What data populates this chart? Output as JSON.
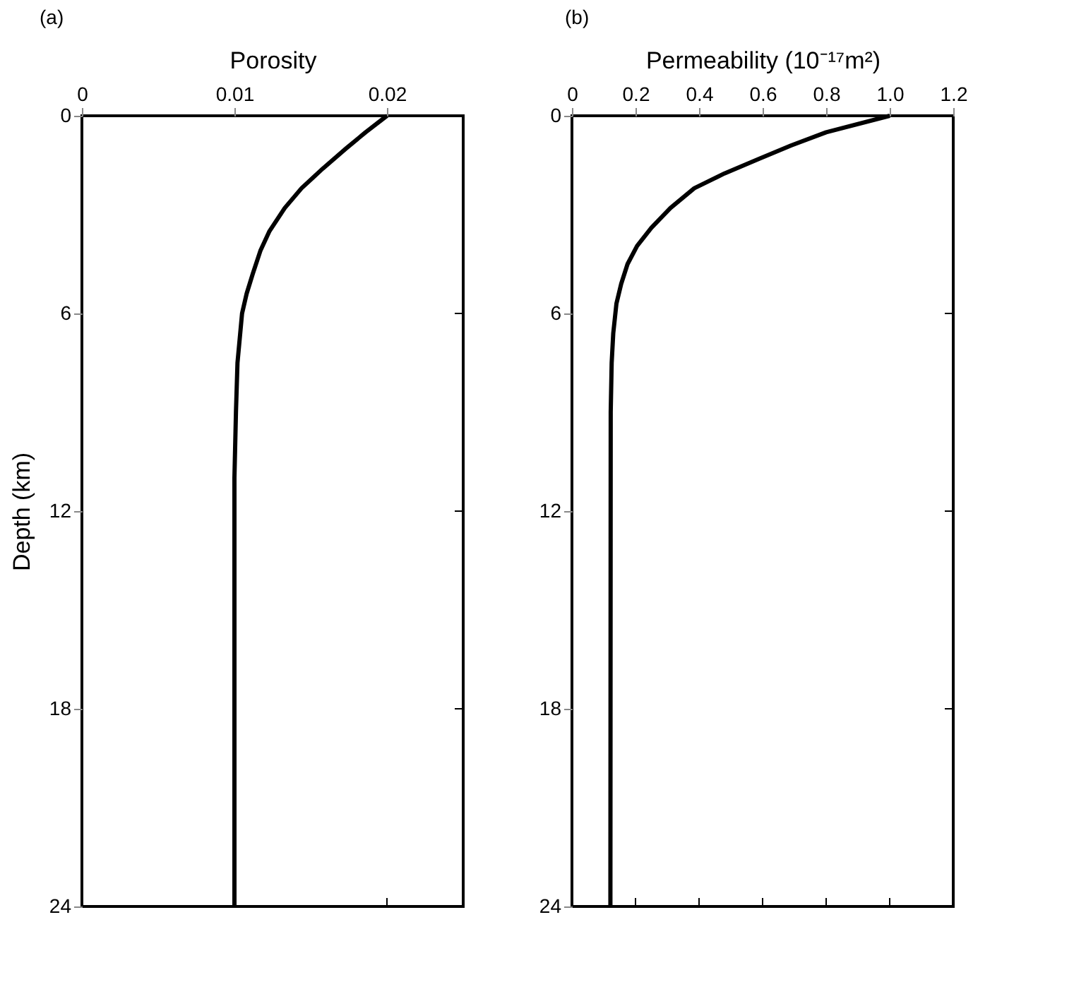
{
  "chart_data": [
    {
      "type": "line",
      "xlabel": "Porosity",
      "ylabel": "Depth (km)",
      "annotations": [
        "(a)"
      ],
      "xlim": [
        0,
        0.025
      ],
      "xticks": [
        0,
        0.01,
        0.02
      ],
      "ylim": [
        24,
        0
      ],
      "yticks": [
        0,
        6,
        12,
        18,
        24
      ],
      "grid": false,
      "line_style": "solid",
      "marker": "none",
      "series": [
        {
          "color": "#000000",
          "x": [
            0.02,
            0.0186,
            0.0173,
            0.0158,
            0.0144,
            0.0133,
            0.0123,
            0.0117,
            0.0112,
            0.0108,
            0.0105,
            0.0102,
            0.0101,
            0.01,
            0.01
          ],
          "values": [
            0,
            0.5,
            1.0,
            1.6,
            2.2,
            2.8,
            3.5,
            4.1,
            4.8,
            5.4,
            6,
            7.5,
            9,
            11,
            24
          ]
        }
      ]
    },
    {
      "type": "line",
      "xlabel": "Permeability (10⁻¹⁷m²)",
      "annotations": [
        "(b)"
      ],
      "xlim": [
        0,
        1.2
      ],
      "xticks": [
        0,
        0.2,
        0.4,
        0.6,
        0.8,
        {
          "value": 1,
          "label": "1.0"
        },
        1.2
      ],
      "ylim": [
        24,
        0
      ],
      "yticks": [
        0,
        6,
        12,
        18,
        24
      ],
      "grid": false,
      "line_style": "solid",
      "marker": "none",
      "series": [
        {
          "color": "#000000",
          "x": [
            1.0,
            0.8,
            0.69,
            0.59,
            0.48,
            0.385,
            0.31,
            0.25,
            0.205,
            0.175,
            0.155,
            0.14,
            0.13,
            0.125,
            0.122,
            0.121
          ],
          "values": [
            0,
            0.5,
            0.9,
            1.3,
            1.75,
            2.2,
            2.8,
            3.4,
            3.95,
            4.5,
            5.1,
            5.7,
            6.6,
            7.5,
            9,
            24
          ]
        }
      ]
    }
  ]
}
